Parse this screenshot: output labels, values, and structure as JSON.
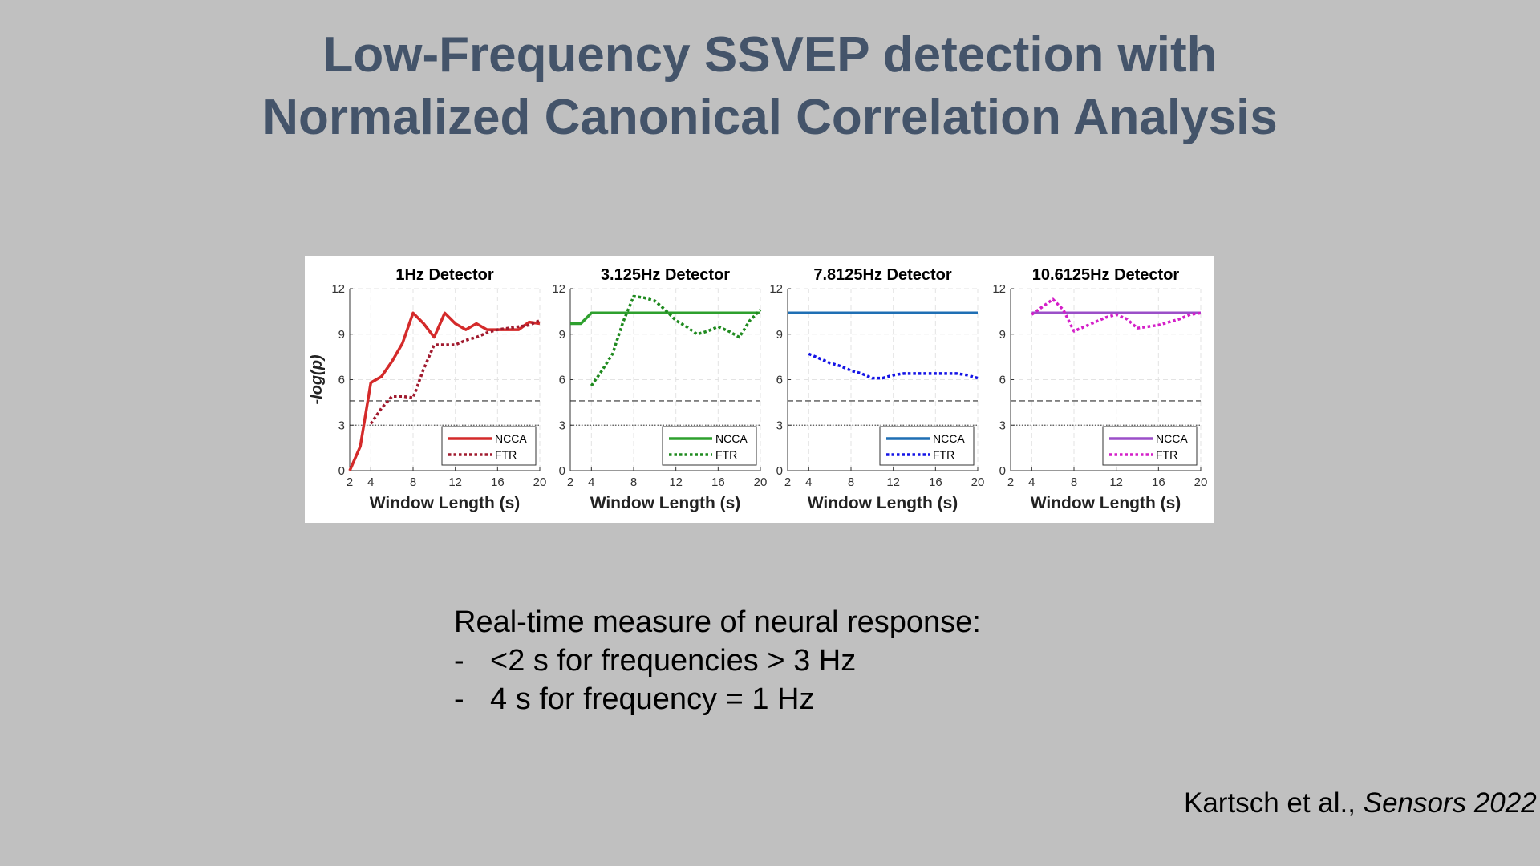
{
  "title": {
    "line1": "Low-Frequency SSVEP detection with",
    "line2": "Normalized Canonical Correlation Analysis"
  },
  "bullets": {
    "heading": "Real-time measure of neural response:",
    "items": [
      {
        "dash": "-",
        "text": "<2 s for frequencies > 3 Hz"
      },
      {
        "dash": "-",
        "text": "4 s for frequency = 1 Hz"
      }
    ]
  },
  "citation": {
    "authors": "Kartsch et al., ",
    "journal": "Sensors 2022"
  },
  "chart_data": [
    {
      "type": "line",
      "title": "1Hz Detector",
      "xlabel": "Window Length (s)",
      "ylabel": "-log(p)",
      "xlim": [
        2,
        20
      ],
      "ylim": [
        0,
        12
      ],
      "xticks": [
        2,
        4,
        8,
        12,
        16,
        20
      ],
      "yticks": [
        0,
        3,
        6,
        9,
        12
      ],
      "grid": true,
      "legend_position": "bottom-right",
      "reference_lines": [
        {
          "y": 4.6,
          "style": "dashed"
        },
        {
          "y": 3.0,
          "style": "dotted"
        }
      ],
      "series": [
        {
          "name": "NCCA",
          "color": "#d42a2a",
          "style": "solid",
          "x": [
            2,
            3,
            4,
            5,
            6,
            7,
            8,
            9,
            10,
            11,
            12,
            13,
            14,
            15,
            16,
            17,
            18,
            19,
            20
          ],
          "y": [
            0.0,
            1.6,
            5.8,
            6.2,
            7.2,
            8.4,
            10.4,
            9.7,
            8.8,
            10.4,
            9.7,
            9.3,
            9.7,
            9.3,
            9.3,
            9.3,
            9.3,
            9.8,
            9.7
          ]
        },
        {
          "name": "FTR",
          "color": "#a01a2e",
          "style": "dotted",
          "x": [
            4,
            5,
            6,
            7,
            8,
            9,
            10,
            11,
            12,
            13,
            14,
            15,
            16,
            17,
            18,
            19,
            20
          ],
          "y": [
            3.1,
            4.1,
            4.9,
            4.9,
            4.8,
            6.7,
            8.3,
            8.3,
            8.3,
            8.6,
            8.8,
            9.1,
            9.3,
            9.4,
            9.5,
            9.6,
            9.9
          ]
        }
      ]
    },
    {
      "type": "line",
      "title": "3.125Hz Detector",
      "xlabel": "Window Length (s)",
      "ylabel": "",
      "xlim": [
        2,
        20
      ],
      "ylim": [
        0,
        12
      ],
      "xticks": [
        2,
        4,
        8,
        12,
        16,
        20
      ],
      "yticks": [
        0,
        3,
        6,
        9,
        12
      ],
      "grid": true,
      "legend_position": "bottom-right",
      "reference_lines": [
        {
          "y": 4.6,
          "style": "dashed"
        },
        {
          "y": 3.0,
          "style": "dotted"
        }
      ],
      "series": [
        {
          "name": "NCCA",
          "color": "#2ea02e",
          "style": "solid",
          "x": [
            2,
            3,
            4,
            5,
            6,
            7,
            8,
            9,
            10,
            11,
            12,
            13,
            14,
            15,
            16,
            17,
            18,
            19,
            20
          ],
          "y": [
            9.7,
            9.7,
            10.4,
            10.4,
            10.4,
            10.4,
            10.4,
            10.4,
            10.4,
            10.4,
            10.4,
            10.4,
            10.4,
            10.4,
            10.4,
            10.4,
            10.4,
            10.4,
            10.4
          ]
        },
        {
          "name": "FTR",
          "color": "#1f8a1f",
          "style": "dotted",
          "x": [
            4,
            5,
            6,
            7,
            8,
            9,
            10,
            11,
            12,
            13,
            14,
            15,
            16,
            17,
            18,
            19,
            20
          ],
          "y": [
            5.6,
            6.6,
            7.7,
            9.8,
            11.5,
            11.4,
            11.2,
            10.6,
            9.9,
            9.5,
            9.0,
            9.2,
            9.5,
            9.2,
            8.8,
            9.9,
            10.6
          ]
        }
      ]
    },
    {
      "type": "line",
      "title": "7.8125Hz Detector",
      "xlabel": "Window Length (s)",
      "ylabel": "",
      "xlim": [
        2,
        20
      ],
      "ylim": [
        0,
        12
      ],
      "xticks": [
        2,
        4,
        8,
        12,
        16,
        20
      ],
      "yticks": [
        0,
        3,
        6,
        9,
        12
      ],
      "grid": true,
      "legend_position": "bottom-right",
      "reference_lines": [
        {
          "y": 4.6,
          "style": "dashed"
        },
        {
          "y": 3.0,
          "style": "dotted"
        }
      ],
      "series": [
        {
          "name": "NCCA",
          "color": "#1f6fb4",
          "style": "solid",
          "x": [
            2,
            20
          ],
          "y": [
            10.4,
            10.4
          ]
        },
        {
          "name": "FTR",
          "color": "#1414e6",
          "style": "dotted",
          "x": [
            4,
            5,
            6,
            7,
            8,
            9,
            10,
            11,
            12,
            13,
            14,
            15,
            16,
            17,
            18,
            19,
            20
          ],
          "y": [
            7.7,
            7.4,
            7.1,
            6.9,
            6.6,
            6.4,
            6.1,
            6.1,
            6.3,
            6.4,
            6.4,
            6.4,
            6.4,
            6.4,
            6.4,
            6.3,
            6.1
          ]
        }
      ]
    },
    {
      "type": "line",
      "title": "10.6125Hz Detector",
      "xlabel": "Window Length (s)",
      "ylabel": "",
      "xlim": [
        2,
        20
      ],
      "ylim": [
        0,
        12
      ],
      "xticks": [
        2,
        4,
        8,
        12,
        16,
        20
      ],
      "yticks": [
        0,
        3,
        6,
        9,
        12
      ],
      "grid": true,
      "legend_position": "bottom-right",
      "reference_lines": [
        {
          "y": 4.6,
          "style": "dashed"
        },
        {
          "y": 3.0,
          "style": "dotted"
        }
      ],
      "series": [
        {
          "name": "NCCA",
          "color": "#9b4fc8",
          "style": "solid",
          "x": [
            4,
            20
          ],
          "y": [
            10.4,
            10.4
          ]
        },
        {
          "name": "FTR",
          "color": "#d41fc8",
          "style": "dotted",
          "x": [
            4,
            5,
            6,
            7,
            8,
            9,
            10,
            11,
            12,
            13,
            14,
            15,
            16,
            17,
            18,
            19,
            20
          ],
          "y": [
            10.3,
            10.8,
            11.3,
            10.6,
            9.2,
            9.5,
            9.8,
            10.1,
            10.3,
            10.0,
            9.4,
            9.5,
            9.6,
            9.8,
            10.0,
            10.3,
            10.4
          ]
        }
      ]
    }
  ]
}
